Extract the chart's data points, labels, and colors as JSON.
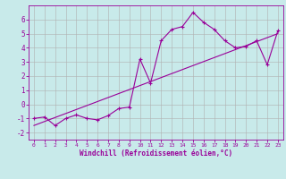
{
  "x": [
    0,
    1,
    2,
    3,
    4,
    5,
    6,
    7,
    8,
    9,
    10,
    11,
    12,
    13,
    14,
    15,
    16,
    17,
    18,
    19,
    20,
    21,
    22,
    23
  ],
  "y_curve": [
    -1.0,
    -0.9,
    -1.5,
    -1.0,
    -0.75,
    -1.0,
    -1.1,
    -0.8,
    -0.3,
    -0.2,
    3.2,
    1.5,
    4.5,
    5.3,
    5.5,
    6.5,
    5.8,
    5.3,
    4.5,
    4.0,
    4.1,
    4.5,
    2.8,
    5.2
  ],
  "line_x": [
    0,
    23
  ],
  "line_y": [
    -1.5,
    5.0
  ],
  "color": "#990099",
  "bg_color": "#c8eaea",
  "grid_color": "#b0b0b0",
  "xlabel": "Windchill (Refroidissement éolien,°C)",
  "xlim": [
    -0.5,
    23.5
  ],
  "ylim": [
    -2.5,
    7.0
  ],
  "yticks": [
    -2,
    -1,
    0,
    1,
    2,
    3,
    4,
    5,
    6
  ],
  "xticks": [
    0,
    1,
    2,
    3,
    4,
    5,
    6,
    7,
    8,
    9,
    10,
    11,
    12,
    13,
    14,
    15,
    16,
    17,
    18,
    19,
    20,
    21,
    22,
    23
  ]
}
